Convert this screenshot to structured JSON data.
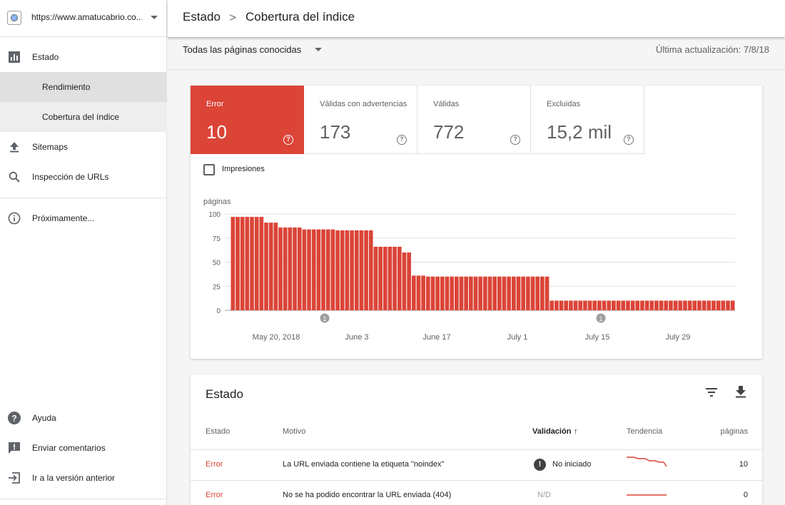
{
  "sidebar": {
    "property_url": "https://www.amatucabrio.co...",
    "items": [
      {
        "label": "Estado",
        "icon": "bar-chart-icon"
      },
      {
        "label": "Rendimiento"
      },
      {
        "label": "Cobertura del índice"
      },
      {
        "label": "Sitemaps",
        "icon": "upload-icon"
      },
      {
        "label": "Inspección de URLs",
        "icon": "search-icon"
      },
      {
        "label": "Próximamente...",
        "icon": "info-icon"
      }
    ],
    "bottom": [
      {
        "label": "Ayuda",
        "icon": "help-icon"
      },
      {
        "label": "Enviar comentarios",
        "icon": "feedback-icon"
      },
      {
        "label": "Ir a la versión anterior",
        "icon": "exit-icon"
      }
    ]
  },
  "header": {
    "crumb1": "Estado",
    "separator": ">",
    "crumb2": "Cobertura del índice",
    "filter": "Todas las páginas conocidas",
    "last_update": "Última actualización: 7/8/18"
  },
  "tabs": [
    {
      "label": "Error",
      "value": "10",
      "active": true
    },
    {
      "label": "Válidas con advertencias",
      "value": "173",
      "active": false
    },
    {
      "label": "Válidas",
      "value": "772",
      "active": false
    },
    {
      "label": "Excluidas",
      "value": "15,2 mil",
      "active": false
    }
  ],
  "help_glyph": "?",
  "impressions_label": "Impresiones",
  "chart_data": {
    "type": "bar",
    "ylabel": "páginas",
    "ylim": [
      0,
      100
    ],
    "yticks": [
      0,
      25,
      50,
      75,
      100
    ],
    "xtick_labels": [
      "May 20, 2018",
      "June 3",
      "June 17",
      "July 1",
      "July 15",
      "July 29"
    ],
    "annotation_marker": "1",
    "bar_color": "#db4437",
    "values": [
      97,
      97,
      97,
      97,
      97,
      97,
      97,
      91,
      91,
      91,
      86,
      86,
      86,
      86,
      86,
      84,
      84,
      84,
      84,
      84,
      84,
      84,
      83,
      83,
      83,
      83,
      83,
      83,
      83,
      83,
      66,
      66,
      66,
      66,
      66,
      66,
      60,
      60,
      36,
      36,
      36,
      35,
      35,
      35,
      35,
      35,
      35,
      35,
      35,
      35,
      35,
      35,
      35,
      35,
      35,
      35,
      35,
      35,
      35,
      35,
      35,
      35,
      35,
      35,
      35,
      35,
      35,
      10,
      10,
      10,
      10,
      10,
      10,
      10,
      10,
      10,
      10,
      10,
      10,
      10,
      10,
      10,
      10,
      10,
      10,
      10,
      10,
      10,
      10,
      10,
      10,
      10,
      10,
      10,
      10,
      10,
      10,
      10,
      10,
      10,
      10,
      10,
      10,
      10,
      10,
      10
    ]
  },
  "details": {
    "title": "Estado",
    "columns": [
      "Estado",
      "Motivo",
      "Validación",
      "Tendencia",
      "páginas"
    ],
    "sort_arrow": "↑",
    "rows": [
      {
        "status": "Error",
        "reason": "La URL enviada contiene la etiqueta \"noindex\"",
        "validation": "No iniciado",
        "pages": "10"
      },
      {
        "status": "Error",
        "reason": "No se ha podido encontrar la URL enviada (404)",
        "validation": "N/D",
        "pages": "0"
      }
    ]
  },
  "colors": {
    "error": "#db4437",
    "text": "#212121",
    "muted": "#616161"
  }
}
